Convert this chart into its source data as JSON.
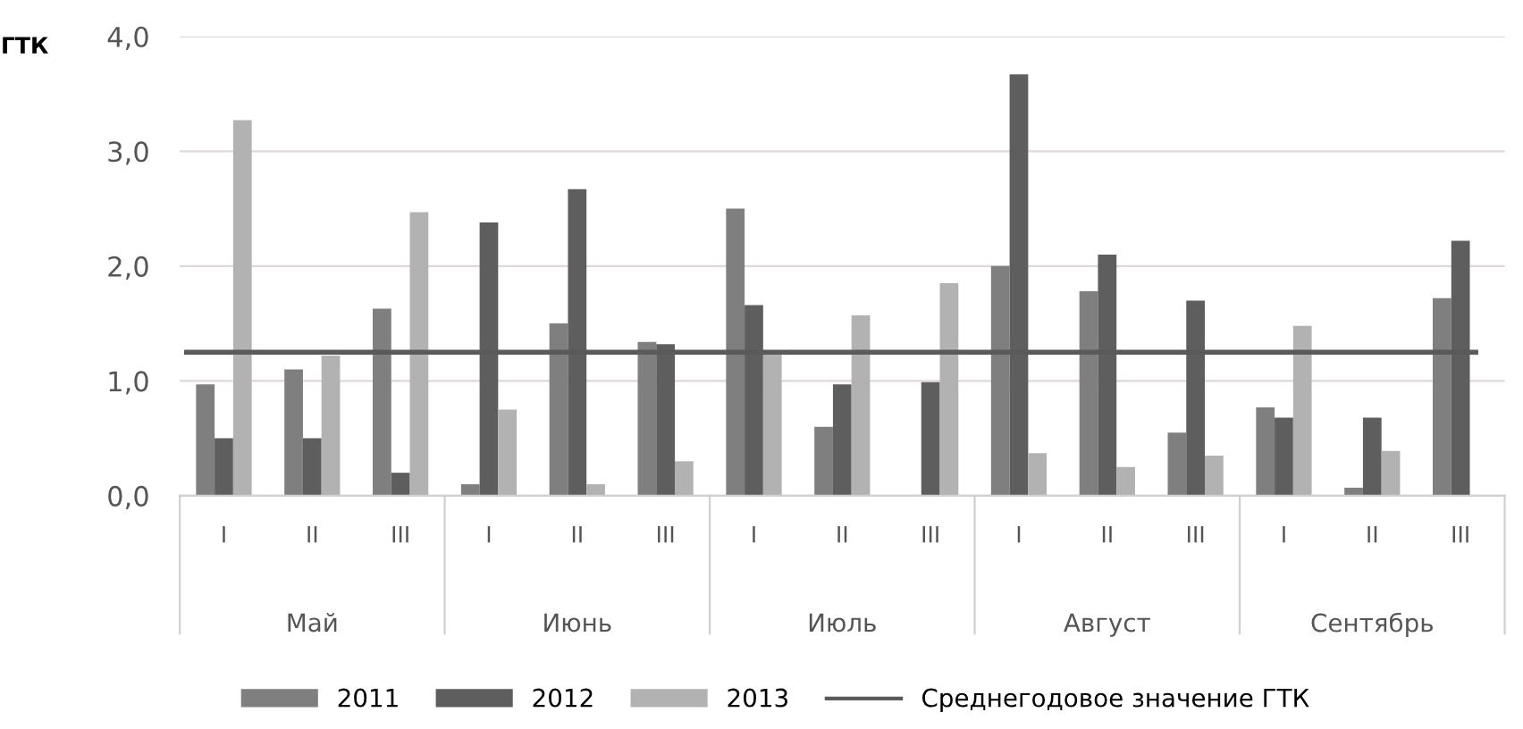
{
  "chart_data": {
    "type": "bar",
    "ylabel": "ГТК",
    "categories": [
      "I",
      "II",
      "III",
      "I",
      "II",
      "III",
      "I",
      "II",
      "III",
      "I",
      "II",
      "III",
      "I",
      "II",
      "III"
    ],
    "series": [
      {
        "name": "2011",
        "color": "#7f7f7f",
        "values": [
          0.97,
          1.1,
          1.63,
          0.1,
          1.5,
          1.34,
          2.5,
          0.6,
          0,
          2.0,
          1.78,
          0.55,
          0.77,
          0.07,
          1.72
        ]
      },
      {
        "name": "2012",
        "color": "#5e5e5e",
        "values": [
          0.5,
          0.5,
          0.2,
          2.38,
          2.67,
          1.32,
          1.66,
          0.97,
          0.99,
          3.67,
          2.1,
          1.7,
          0.68,
          0.68,
          2.22
        ]
      },
      {
        "name": "2013",
        "color": "#b2b2b2",
        "values": [
          3.27,
          1.22,
          2.47,
          0.75,
          0.1,
          0.3,
          1.25,
          1.57,
          1.85,
          0.37,
          0.25,
          0.35,
          1.48,
          0.39,
          0
        ]
      }
    ],
    "ylim": [
      0,
      4
    ],
    "yticks": [
      {
        "value": 0,
        "label": "0,0"
      },
      {
        "value": 1,
        "label": "1,0"
      },
      {
        "value": 2,
        "label": "2,0"
      },
      {
        "value": 3,
        "label": "3,0"
      },
      {
        "value": 4,
        "label": "4,0"
      }
    ],
    "ref_lines": [
      {
        "axis": "y",
        "value": 1.25,
        "label": "Среднегодовое значение ГТК",
        "color": "#5a5a5a"
      }
    ],
    "annotations": [
      "Май",
      "Июнь",
      "Июль",
      "Август",
      "Сентябрь"
    ],
    "grid": "y",
    "legend": "bottom"
  }
}
